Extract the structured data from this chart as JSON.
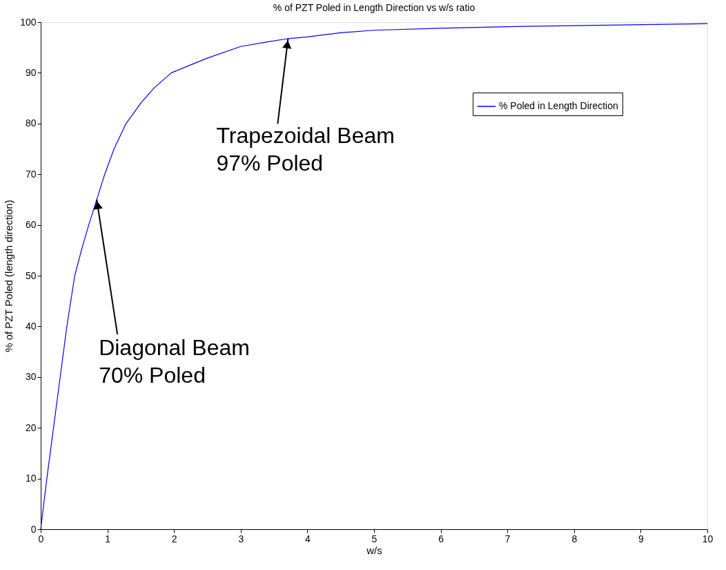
{
  "chart_data": {
    "type": "line",
    "title": "% of PZT Poled in Length Direction vs w/s ratio",
    "xlabel": "w/s",
    "ylabel": "% of PZT Poled (length direction)",
    "series": [
      {
        "name": "% Poled in Length Direction",
        "color": "#0000ff",
        "x": [
          0,
          0.09,
          0.19,
          0.29,
          0.39,
          0.51,
          0.61,
          0.72,
          0.84,
          0.96,
          1.1,
          1.28,
          1.5,
          1.7,
          1.96,
          2.2,
          2.5,
          3,
          3.4,
          3.69,
          4,
          4.5,
          5,
          6,
          7,
          8,
          10
        ],
        "values": [
          0,
          9.8,
          19.8,
          29.8,
          39.8,
          50,
          55,
          60,
          65,
          70,
          75,
          80,
          84,
          87,
          90,
          91.3,
          92.9,
          95.2,
          96.1,
          96.7,
          97.1,
          97.9,
          98.4,
          98.8,
          99.1,
          99.3,
          99.7
        ]
      }
    ],
    "xlim": [
      0,
      10
    ],
    "xticks": [
      0,
      1,
      2,
      3,
      4,
      5,
      6,
      7,
      8,
      9,
      10
    ],
    "ylim": [
      0,
      100
    ],
    "yticks": [
      0,
      10,
      20,
      30,
      40,
      50,
      60,
      70,
      80,
      90,
      100
    ],
    "grid": false,
    "legend": "top right",
    "marker": "none",
    "line_style": "solid",
    "annotations": [
      {
        "text": "Diagonal Beam\n70% Poled",
        "x": 0.84,
        "y": 65
      },
      {
        "text": "Trapezoidal Beam\n97% Poled",
        "x": 3.71,
        "y": 96.7
      }
    ]
  }
}
